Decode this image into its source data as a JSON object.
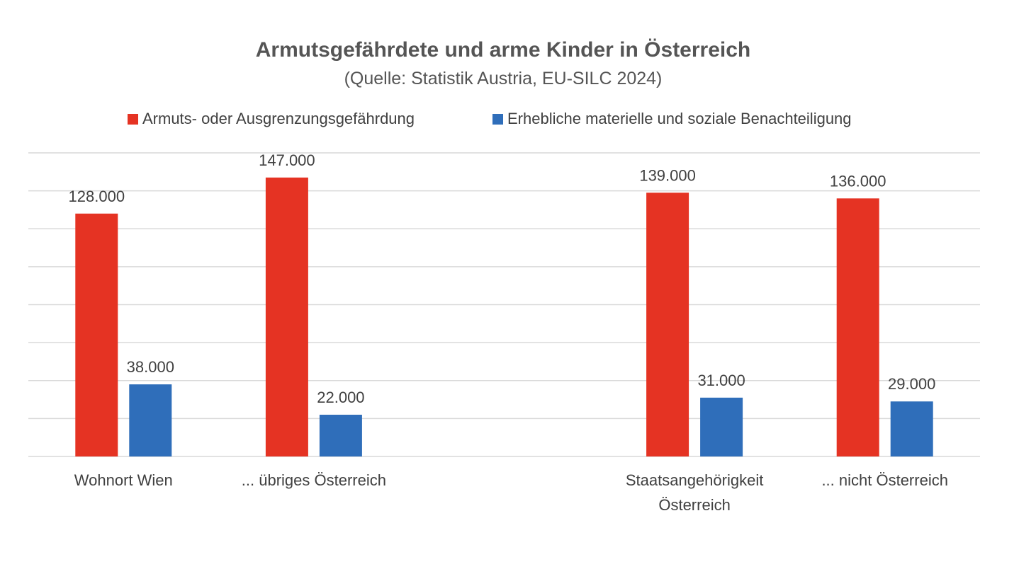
{
  "chart_data": {
    "type": "bar",
    "title": "Armutsgefährdete und arme Kinder in Österreich",
    "subtitle": "(Quelle: Statistik Austria, EU-SILC 2024)",
    "categories": [
      [
        "Wohnort Wien"
      ],
      [
        "... übriges Österreich"
      ],
      [],
      [
        "Staatsangehörigkeit",
        "Österreich"
      ],
      [
        "... nicht Österreich"
      ]
    ],
    "series": [
      {
        "name": "Armuts- oder Ausgrenzungsgefährdung",
        "color": "#E53323",
        "values": [
          128000,
          147000,
          null,
          139000,
          136000
        ],
        "labels": [
          "128.000",
          "147.000",
          "",
          "139.000",
          "136.000"
        ]
      },
      {
        "name": "Erhebliche materielle und soziale Benachteiligung",
        "color": "#2F6EBA",
        "values": [
          38000,
          22000,
          null,
          31000,
          29000
        ],
        "labels": [
          "38.000",
          "22.000",
          "",
          "31.000",
          "29.000"
        ]
      }
    ],
    "ylim": [
      0,
      160000
    ],
    "ytick_step": 20000,
    "grid": true,
    "legend_position": "top",
    "xlabel": "",
    "ylabel": ""
  }
}
